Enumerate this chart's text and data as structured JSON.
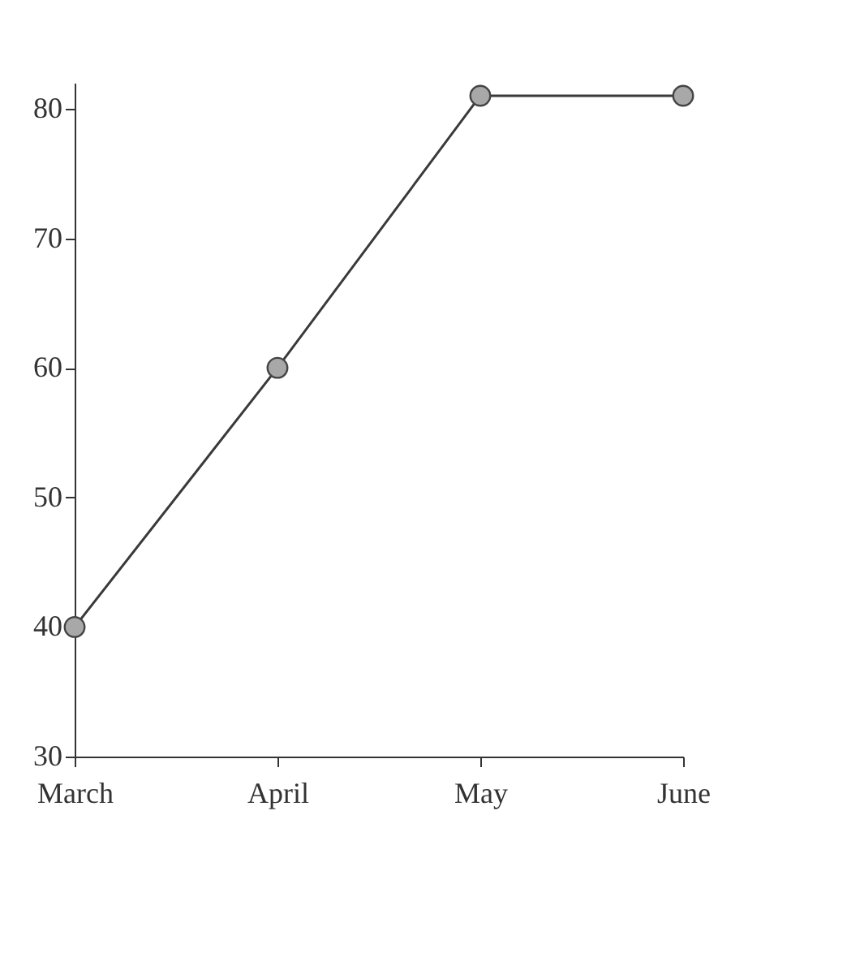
{
  "chart_data": {
    "type": "line",
    "categories": [
      "March",
      "April",
      "May",
      "June"
    ],
    "series": [
      {
        "color": "#3a3a3a",
        "values": [
          40,
          60,
          81,
          81
        ]
      }
    ],
    "ylim": [
      30,
      82
    ],
    "yticks": [
      30,
      40,
      50,
      60,
      70,
      80
    ],
    "grid": false,
    "marker": "circle",
    "line_style": "solid"
  }
}
